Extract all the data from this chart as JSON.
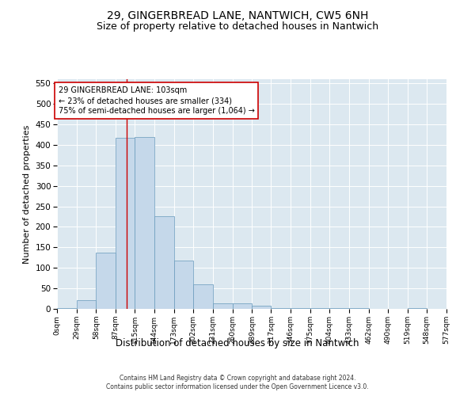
{
  "title_line1": "29, GINGERBREAD LANE, NANTWICH, CW5 6NH",
  "title_line2": "Size of property relative to detached houses in Nantwich",
  "xlabel": "Distribution of detached houses by size in Nantwich",
  "ylabel": "Number of detached properties",
  "bin_edges": [
    0,
    29,
    58,
    87,
    115,
    144,
    173,
    202,
    231,
    260,
    289,
    317,
    346,
    375,
    404,
    433,
    462,
    490,
    519,
    548,
    577
  ],
  "bar_heights": [
    2,
    22,
    137,
    418,
    420,
    226,
    117,
    60,
    13,
    13,
    7,
    1,
    1,
    1,
    2,
    1,
    0,
    0,
    1,
    0
  ],
  "bar_color": "#c5d8ea",
  "bar_edge_color": "#6699bb",
  "property_size": 103,
  "vline_color": "#cc0000",
  "annotation_text": "29 GINGERBREAD LANE: 103sqm\n← 23% of detached houses are smaller (334)\n75% of semi-detached houses are larger (1,064) →",
  "annotation_box_color": "#ffffff",
  "annotation_box_edge_color": "#cc0000",
  "ylim": [
    0,
    560
  ],
  "yticks": [
    0,
    50,
    100,
    150,
    200,
    250,
    300,
    350,
    400,
    450,
    500,
    550
  ],
  "background_color": "#dce8f0",
  "grid_color": "#ffffff",
  "footer_line1": "Contains HM Land Registry data © Crown copyright and database right 2024.",
  "footer_line2": "Contains public sector information licensed under the Open Government Licence v3.0.",
  "title_fontsize": 10,
  "subtitle_fontsize": 9,
  "tick_label_fontsize": 6.5,
  "ylabel_fontsize": 8,
  "xlabel_fontsize": 8.5,
  "footer_fontsize": 5.5
}
